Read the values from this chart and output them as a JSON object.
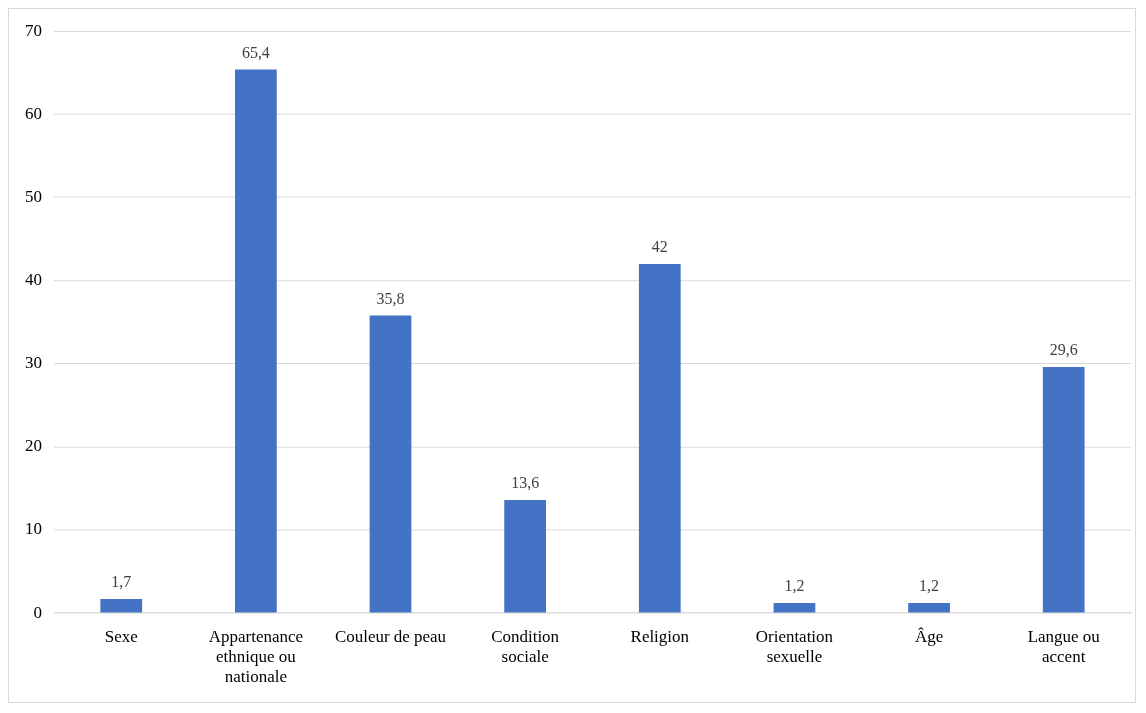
{
  "chart_data": {
    "type": "bar",
    "categories": [
      "Sexe",
      "Appartenance ethnique ou nationale",
      "Couleur de peau",
      "Condition sociale",
      "Religion",
      "Orientation sexuelle",
      "Âge",
      "Langue ou accent"
    ],
    "values": [
      1.7,
      65.4,
      35.8,
      13.6,
      42,
      1.2,
      1.2,
      29.6
    ],
    "value_labels": [
      "1,7",
      "65,4",
      "35,8",
      "13,6",
      "42",
      "1,2",
      "1,2",
      "29,6"
    ],
    "color": "#4472c4",
    "ylim": [
      0,
      70
    ],
    "yticks": [
      0,
      10,
      20,
      30,
      40,
      50,
      60,
      70
    ],
    "grid": "y",
    "legend": false
  }
}
